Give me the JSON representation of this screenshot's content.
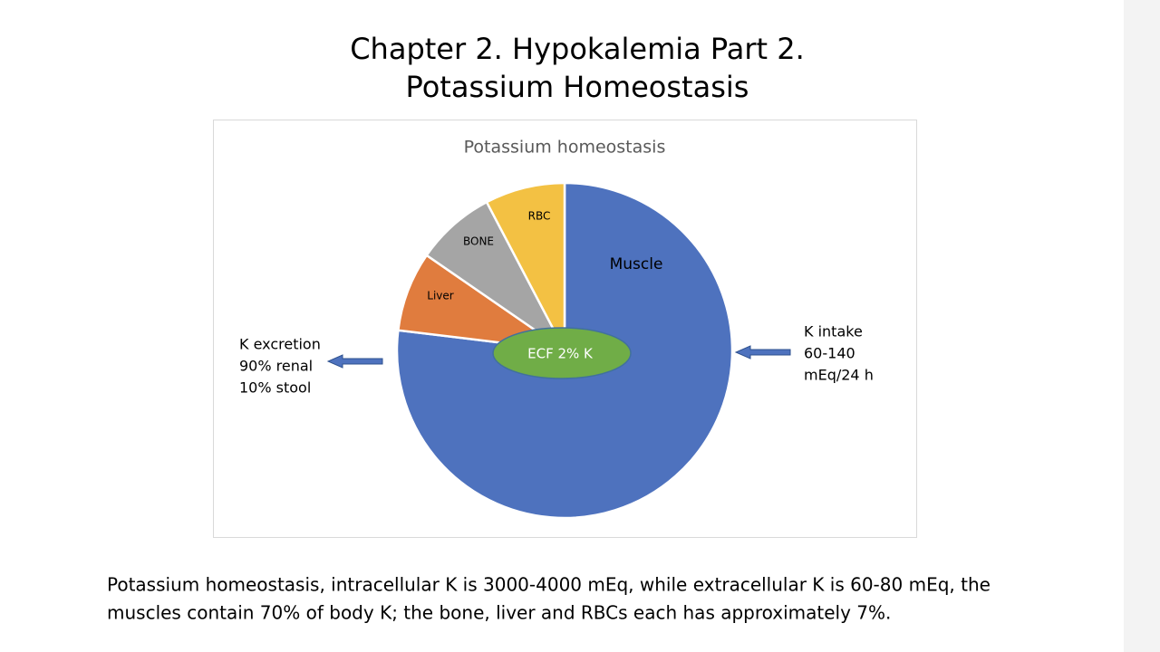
{
  "slide_title": [
    "Chapter 2. Hypokalemia Part 2.",
    "Potassium Homeostasis"
  ],
  "chart_data": {
    "type": "pie",
    "title": "Potassium homeostasis",
    "categories": [
      "Muscle",
      "Liver",
      "BONE",
      "RBC"
    ],
    "values": [
      70,
      7,
      7,
      7
    ],
    "colors": [
      "#4e72be",
      "#e07c3e",
      "#a5a5a5",
      "#f3c143"
    ],
    "center_label": "ECF 2% K",
    "left_note": [
      "K  excretion",
      "90% renal",
      "10% stool"
    ],
    "right_note": [
      "K intake",
      "60-140",
      "mEq/24 h"
    ]
  },
  "caption": [
    "Potassium homeostasis, intracellular K is 3000-4000 mEq, while extracellular K is 60-80 mEq, the",
    "muscles contain 70% of body K; the bone, liver and RBCs each has approximately 7%."
  ]
}
